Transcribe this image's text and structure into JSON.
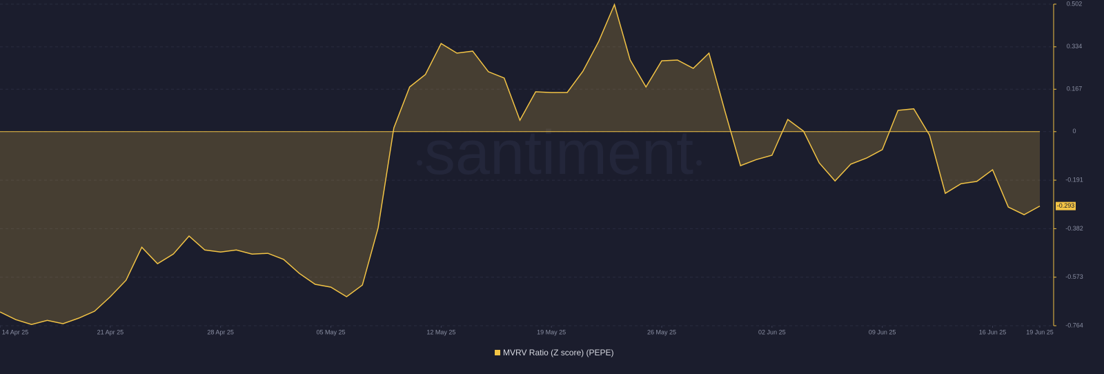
{
  "chart_data": {
    "type": "area-line",
    "watermark": "santiment",
    "x": [
      "2025-04-14",
      "2025-04-15",
      "2025-04-16",
      "2025-04-17",
      "2025-04-18",
      "2025-04-19",
      "2025-04-20",
      "2025-04-21",
      "2025-04-22",
      "2025-04-23",
      "2025-04-24",
      "2025-04-25",
      "2025-04-26",
      "2025-04-27",
      "2025-04-28",
      "2025-04-29",
      "2025-04-30",
      "2025-05-01",
      "2025-05-02",
      "2025-05-03",
      "2025-05-04",
      "2025-05-05",
      "2025-05-06",
      "2025-05-07",
      "2025-05-08",
      "2025-05-09",
      "2025-05-10",
      "2025-05-11",
      "2025-05-12",
      "2025-05-13",
      "2025-05-14",
      "2025-05-15",
      "2025-05-16",
      "2025-05-17",
      "2025-05-18",
      "2025-05-19",
      "2025-05-20",
      "2025-05-21",
      "2025-05-22",
      "2025-05-23",
      "2025-05-24",
      "2025-05-25",
      "2025-05-26",
      "2025-05-27",
      "2025-05-28",
      "2025-05-29",
      "2025-05-30",
      "2025-05-31",
      "2025-06-01",
      "2025-06-02",
      "2025-06-03",
      "2025-06-04",
      "2025-06-05",
      "2025-06-06",
      "2025-06-07",
      "2025-06-08",
      "2025-06-09",
      "2025-06-10",
      "2025-06-11",
      "2025-06-12",
      "2025-06-13",
      "2025-06-14",
      "2025-06-15",
      "2025-06-16",
      "2025-06-17",
      "2025-06-18",
      "2025-06-19"
    ],
    "series": [
      {
        "name": "MVRV Ratio (Z score) (PEPE)",
        "color": "#f3c445",
        "values": [
          -0.71,
          -0.74,
          -0.759,
          -0.743,
          -0.756,
          -0.734,
          -0.707,
          -0.65,
          -0.585,
          -0.455,
          -0.52,
          -0.482,
          -0.411,
          -0.466,
          -0.474,
          -0.466,
          -0.482,
          -0.479,
          -0.503,
          -0.558,
          -0.601,
          -0.612,
          -0.65,
          -0.604,
          -0.379,
          0.015,
          0.176,
          0.225,
          0.347,
          0.309,
          0.317,
          0.236,
          0.211,
          0.045,
          0.157,
          0.154,
          0.154,
          0.238,
          0.355,
          0.5,
          0.282,
          0.176,
          0.279,
          0.282,
          0.249,
          0.309,
          0.084,
          -0.134,
          -0.11,
          -0.093,
          0.048,
          0.002,
          -0.123,
          -0.194,
          -0.128,
          -0.104,
          -0.071,
          0.084,
          0.09,
          -0.014,
          -0.243,
          -0.205,
          -0.196,
          -0.15,
          -0.297,
          -0.327,
          -0.293
        ]
      }
    ],
    "ylim": [
      -0.764,
      0.502
    ],
    "yticks": [
      0.502,
      0.334,
      0.167,
      0,
      -0.191,
      -0.382,
      -0.573,
      -0.764
    ],
    "xticks": [
      {
        "value": "2025-04-14",
        "label": "14 Apr 25"
      },
      {
        "value": "2025-04-21",
        "label": "21 Apr 25"
      },
      {
        "value": "2025-04-28",
        "label": "28 Apr 25"
      },
      {
        "value": "2025-05-05",
        "label": "05 May 25"
      },
      {
        "value": "2025-05-12",
        "label": "12 May 25"
      },
      {
        "value": "2025-05-19",
        "label": "19 May 25"
      },
      {
        "value": "2025-05-26",
        "label": "26 May 25"
      },
      {
        "value": "2025-06-02",
        "label": "02 Jun 25"
      },
      {
        "value": "2025-06-09",
        "label": "09 Jun 25"
      },
      {
        "value": "2025-06-16",
        "label": "16 Jun 25"
      },
      {
        "value": "2025-06-19",
        "label": "19 Jun 25"
      }
    ],
    "grid": true
  }
}
